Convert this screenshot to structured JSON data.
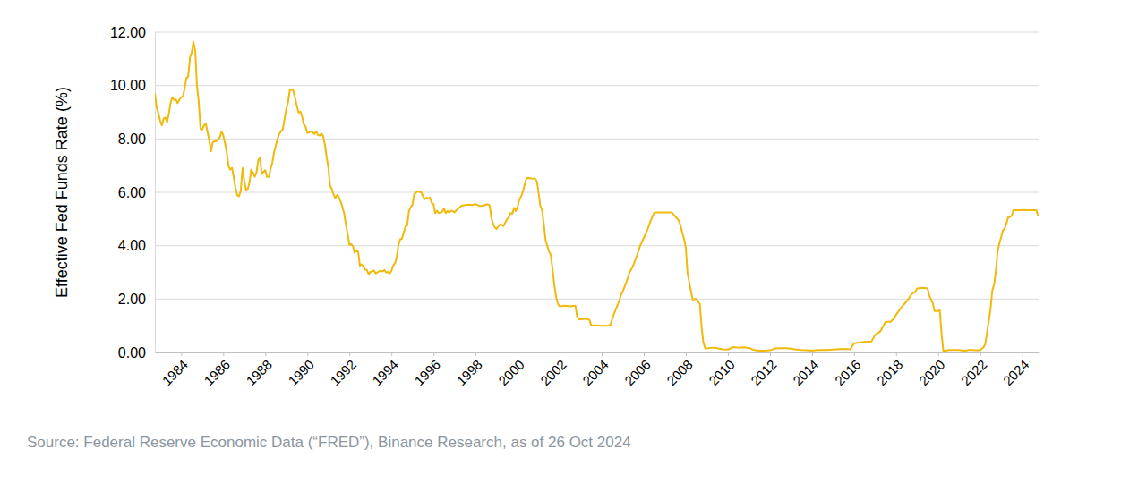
{
  "chart_data": {
    "type": "line",
    "y_label": "Effective Fed Funds Rate (%)",
    "source": "Source: Federal Reserve Economic Data (“FRED”), Binance Research, as of 26 Oct 2024",
    "color": "#f0b90b",
    "grid": true,
    "xlim": [
      1982.75,
      2024.78
    ],
    "xticks": [
      1984,
      1986,
      1988,
      1990,
      1992,
      1994,
      1996,
      1998,
      2000,
      2002,
      2004,
      2006,
      2008,
      2010,
      2012,
      2014,
      2016,
      2018,
      2020,
      2022,
      2024
    ],
    "ylim": [
      0,
      12
    ],
    "yticks": [
      {
        "value": 0,
        "label": "0.00"
      },
      {
        "value": 2,
        "label": "2.00"
      },
      {
        "value": 4,
        "label": "4.00"
      },
      {
        "value": 6,
        "label": "6.00"
      },
      {
        "value": 8,
        "label": "8.00"
      },
      {
        "value": 10,
        "label": "10.00"
      },
      {
        "value": 12,
        "label": "12.00"
      }
    ],
    "x": [
      1982.75,
      1982.83,
      1982.92,
      1983.0,
      1983.08,
      1983.17,
      1983.25,
      1983.33,
      1983.42,
      1983.5,
      1983.58,
      1983.67,
      1983.75,
      1983.83,
      1983.92,
      1984.0,
      1984.08,
      1984.17,
      1984.25,
      1984.33,
      1984.42,
      1984.5,
      1984.58,
      1984.67,
      1984.75,
      1984.83,
      1984.92,
      1985.0,
      1985.08,
      1985.17,
      1985.25,
      1985.33,
      1985.42,
      1985.5,
      1985.58,
      1985.67,
      1985.75,
      1985.83,
      1985.92,
      1986.0,
      1986.08,
      1986.17,
      1986.25,
      1986.33,
      1986.42,
      1986.5,
      1986.58,
      1986.67,
      1986.75,
      1986.83,
      1986.92,
      1987.0,
      1987.08,
      1987.17,
      1987.25,
      1987.33,
      1987.42,
      1987.5,
      1987.58,
      1987.67,
      1987.75,
      1987.83,
      1987.92,
      1988.0,
      1988.08,
      1988.17,
      1988.25,
      1988.33,
      1988.42,
      1988.5,
      1988.58,
      1988.67,
      1988.75,
      1988.83,
      1988.92,
      1989.0,
      1989.08,
      1989.17,
      1989.25,
      1989.33,
      1989.42,
      1989.5,
      1989.58,
      1989.67,
      1989.75,
      1989.83,
      1989.92,
      1990.0,
      1990.08,
      1990.17,
      1990.25,
      1990.33,
      1990.42,
      1990.5,
      1990.58,
      1990.67,
      1990.75,
      1990.83,
      1990.92,
      1991.0,
      1991.08,
      1991.17,
      1991.25,
      1991.33,
      1991.42,
      1991.5,
      1991.58,
      1991.67,
      1991.75,
      1991.83,
      1991.92,
      1992.0,
      1992.08,
      1992.17,
      1992.25,
      1992.33,
      1992.42,
      1992.5,
      1992.58,
      1992.67,
      1992.75,
      1992.83,
      1992.92,
      1993.0,
      1993.08,
      1993.17,
      1993.25,
      1993.33,
      1993.42,
      1993.5,
      1993.58,
      1993.67,
      1993.75,
      1993.83,
      1993.92,
      1994.0,
      1994.08,
      1994.17,
      1994.25,
      1994.33,
      1994.42,
      1994.5,
      1994.58,
      1994.67,
      1994.75,
      1994.83,
      1994.92,
      1995.0,
      1995.08,
      1995.17,
      1995.25,
      1995.33,
      1995.42,
      1995.5,
      1995.58,
      1995.67,
      1995.75,
      1995.83,
      1995.92,
      1996.0,
      1996.08,
      1996.17,
      1996.25,
      1996.33,
      1996.42,
      1996.5,
      1996.58,
      1996.67,
      1996.75,
      1996.83,
      1996.92,
      1997.0,
      1997.17,
      1997.33,
      1997.5,
      1997.67,
      1997.83,
      1998.0,
      1998.17,
      1998.33,
      1998.5,
      1998.58,
      1998.67,
      1998.75,
      1998.83,
      1998.92,
      1999.0,
      1999.17,
      1999.33,
      1999.5,
      1999.58,
      1999.67,
      1999.75,
      1999.83,
      1999.92,
      2000.0,
      2000.08,
      2000.17,
      2000.25,
      2000.33,
      2000.42,
      2000.5,
      2000.67,
      2000.83,
      2000.92,
      2001.0,
      2001.08,
      2001.17,
      2001.25,
      2001.33,
      2001.42,
      2001.5,
      2001.58,
      2001.67,
      2001.75,
      2001.83,
      2001.92,
      2002.0,
      2002.25,
      2002.5,
      2002.75,
      2002.83,
      2002.92,
      2003.0,
      2003.25,
      2003.42,
      2003.5,
      2003.75,
      2004.0,
      2004.25,
      2004.42,
      2004.5,
      2004.58,
      2004.67,
      2004.75,
      2004.83,
      2004.92,
      2005.0,
      2005.17,
      2005.33,
      2005.5,
      2005.67,
      2005.83,
      2006.0,
      2006.17,
      2006.33,
      2006.5,
      2006.67,
      2007.0,
      2007.33,
      2007.58,
      2007.67,
      2007.75,
      2007.83,
      2007.92,
      2008.0,
      2008.08,
      2008.17,
      2008.25,
      2008.33,
      2008.5,
      2008.67,
      2008.75,
      2008.83,
      2008.92,
      2009.0,
      2009.25,
      2009.5,
      2009.75,
      2010.0,
      2010.25,
      2010.5,
      2010.75,
      2011.0,
      2011.25,
      2011.5,
      2011.75,
      2012.0,
      2012.25,
      2012.5,
      2012.75,
      2013.0,
      2013.25,
      2013.5,
      2013.75,
      2014.0,
      2014.25,
      2014.5,
      2014.75,
      2015.0,
      2015.5,
      2015.83,
      2015.92,
      2016.0,
      2016.5,
      2016.83,
      2016.92,
      2017.0,
      2017.25,
      2017.5,
      2017.75,
      2017.92,
      2018.0,
      2018.25,
      2018.5,
      2018.75,
      2018.92,
      2019.0,
      2019.25,
      2019.5,
      2019.58,
      2019.75,
      2019.83,
      2020.0,
      2020.08,
      2020.17,
      2020.25,
      2020.5,
      2020.75,
      2021.0,
      2021.25,
      2021.5,
      2021.75,
      2022.0,
      2022.17,
      2022.25,
      2022.33,
      2022.42,
      2022.5,
      2022.58,
      2022.67,
      2022.75,
      2022.83,
      2022.92,
      2023.0,
      2023.08,
      2023.17,
      2023.25,
      2023.33,
      2023.42,
      2023.5,
      2023.58,
      2024.0,
      2024.5,
      2024.67,
      2024.75
    ],
    "values": [
      9.71,
      9.2,
      8.95,
      8.68,
      8.51,
      8.77,
      8.8,
      8.63,
      8.98,
      9.37,
      9.56,
      9.45,
      9.48,
      9.34,
      9.47,
      9.56,
      9.59,
      9.91,
      10.29,
      10.32,
      11.06,
      11.23,
      11.64,
      11.3,
      9.99,
      9.43,
      8.38,
      8.35,
      8.5,
      8.58,
      8.27,
      7.97,
      7.53,
      7.88,
      7.9,
      7.92,
      7.99,
      8.05,
      8.27,
      8.14,
      7.86,
      7.48,
      6.99,
      6.85,
      6.92,
      6.56,
      6.17,
      5.89,
      5.85,
      6.04,
      6.91,
      6.43,
      6.1,
      6.13,
      6.37,
      6.85,
      6.73,
      6.58,
      6.73,
      7.22,
      7.29,
      6.69,
      6.77,
      6.83,
      6.58,
      6.58,
      6.87,
      7.09,
      7.51,
      7.75,
      8.01,
      8.19,
      8.3,
      8.35,
      8.76,
      9.12,
      9.36,
      9.85,
      9.84,
      9.81,
      9.53,
      9.24,
      8.99,
      9.02,
      8.84,
      8.55,
      8.45,
      8.23,
      8.24,
      8.28,
      8.26,
      8.18,
      8.29,
      8.15,
      8.13,
      8.2,
      8.11,
      7.81,
      7.31,
      6.91,
      6.25,
      6.12,
      5.91,
      5.78,
      5.9,
      5.82,
      5.66,
      5.45,
      5.21,
      4.81,
      4.43,
      4.03,
      4.06,
      3.98,
      3.73,
      3.82,
      3.76,
      3.25,
      3.3,
      3.22,
      3.1,
      3.09,
      2.92,
      3.02,
      3.03,
      3.07,
      2.96,
      3.0,
      3.04,
      3.06,
      3.03,
      3.09,
      2.99,
      3.02,
      2.96,
      3.05,
      3.25,
      3.34,
      3.56,
      4.01,
      4.25,
      4.26,
      4.47,
      4.73,
      4.76,
      5.29,
      5.45,
      5.53,
      5.92,
      5.98,
      6.05,
      6.01,
      6.0,
      5.85,
      5.74,
      5.8,
      5.76,
      5.8,
      5.6,
      5.56,
      5.22,
      5.31,
      5.22,
      5.24,
      5.27,
      5.4,
      5.22,
      5.3,
      5.24,
      5.31,
      5.29,
      5.25,
      5.39,
      5.5,
      5.52,
      5.54,
      5.52,
      5.56,
      5.49,
      5.49,
      5.54,
      5.55,
      5.51,
      5.07,
      4.83,
      4.68,
      4.63,
      4.81,
      4.74,
      4.99,
      5.07,
      5.22,
      5.2,
      5.42,
      5.3,
      5.45,
      5.73,
      5.85,
      6.02,
      6.27,
      6.53,
      6.54,
      6.52,
      6.51,
      6.4,
      5.98,
      5.49,
      5.31,
      4.8,
      4.21,
      3.97,
      3.77,
      3.65,
      3.07,
      2.49,
      2.09,
      1.82,
      1.73,
      1.75,
      1.73,
      1.75,
      1.34,
      1.24,
      1.24,
      1.26,
      1.22,
      1.01,
      1.01,
      1.0,
      1.0,
      1.03,
      1.26,
      1.43,
      1.61,
      1.76,
      1.93,
      2.16,
      2.28,
      2.63,
      3.0,
      3.26,
      3.62,
      4.0,
      4.29,
      4.59,
      4.94,
      5.24,
      5.25,
      5.25,
      5.25,
      5.02,
      4.94,
      4.76,
      4.49,
      4.24,
      3.94,
      2.98,
      2.61,
      2.28,
      1.98,
      2.01,
      1.81,
      0.97,
      0.39,
      0.16,
      0.15,
      0.18,
      0.16,
      0.12,
      0.11,
      0.2,
      0.18,
      0.19,
      0.17,
      0.09,
      0.07,
      0.07,
      0.08,
      0.15,
      0.16,
      0.16,
      0.14,
      0.11,
      0.09,
      0.08,
      0.07,
      0.09,
      0.09,
      0.09,
      0.11,
      0.13,
      0.12,
      0.24,
      0.34,
      0.39,
      0.41,
      0.54,
      0.65,
      0.79,
      1.15,
      1.15,
      1.3,
      1.41,
      1.69,
      1.91,
      2.19,
      2.27,
      2.4,
      2.42,
      2.4,
      2.13,
      1.83,
      1.55,
      1.55,
      1.58,
      0.65,
      0.05,
      0.09,
      0.09,
      0.09,
      0.06,
      0.1,
      0.08,
      0.08,
      0.2,
      0.33,
      0.77,
      1.21,
      1.68,
      2.33,
      2.56,
      3.08,
      3.78,
      4.1,
      4.33,
      4.57,
      4.65,
      4.83,
      5.06,
      5.08,
      5.12,
      5.33,
      5.33,
      5.33,
      5.33,
      5.13
    ]
  }
}
